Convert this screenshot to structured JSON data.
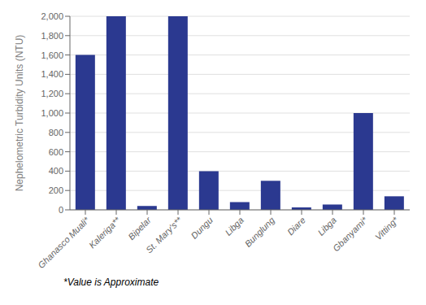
{
  "chart_data": {
    "type": "bar",
    "categories": [
      "Ghanasco Muali*",
      "Kaleriga**",
      "Bipelar",
      "St. Mary's**",
      "Dungu",
      "Libga",
      "Bunglung",
      "Diare",
      "Libga",
      "Gbanyami*",
      "Vitting*"
    ],
    "values": [
      1600,
      2000,
      40,
      2000,
      400,
      80,
      300,
      25,
      55,
      1000,
      140
    ],
    "color": "#2B3990",
    "ylabel": "Nephelometric Turbidity Units (NTU)",
    "footnote": "*Value is Approximate",
    "ylim": [
      0,
      2000
    ],
    "yticks": [
      0,
      200,
      400,
      600,
      800,
      {
        "value": 1000,
        "label": "1,000"
      },
      {
        "value": 1200,
        "label": "1,200"
      },
      {
        "value": 1400,
        "label": "1,400"
      },
      {
        "value": 1600,
        "label": "1,600"
      },
      {
        "value": 1800,
        "label": "1,800"
      },
      {
        "value": 2000,
        "label": "2,000"
      }
    ],
    "grid": true
  }
}
